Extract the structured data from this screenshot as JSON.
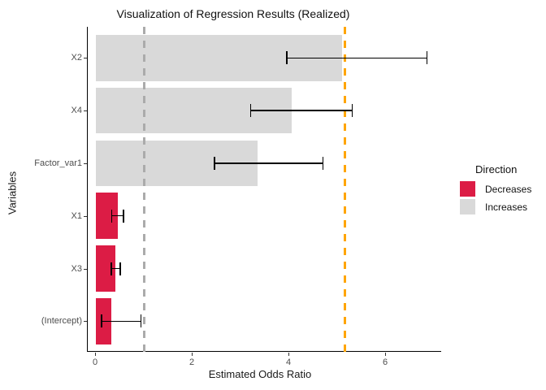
{
  "chart_data": {
    "type": "bar",
    "orientation": "horizontal",
    "title": "Visualization of Regression Results (Realized)",
    "xlabel": "Estimated Odds Ratio",
    "ylabel": "Variables",
    "xlim": [
      -0.2,
      7.2
    ],
    "x_ticks": [
      "0",
      "2",
      "4",
      "6"
    ],
    "x_tick_values": [
      0,
      2,
      4,
      6
    ],
    "grid": false,
    "categories": [
      "X2",
      "X4",
      "Factor_var1",
      "X1",
      "X3",
      "(Intercept)"
    ],
    "values": [
      5.1,
      4.05,
      3.35,
      0.45,
      0.4,
      0.32
    ],
    "ci_low": [
      3.95,
      3.2,
      2.45,
      0.33,
      0.32,
      0.12
    ],
    "ci_high": [
      6.85,
      5.3,
      4.7,
      0.57,
      0.5,
      0.93
    ],
    "direction": [
      "Increases",
      "Increases",
      "Increases",
      "Decreases",
      "Decreases",
      "Decreases"
    ],
    "colors": {
      "Decreases": "#DC1C45",
      "Increases": "#D9D9D9"
    },
    "reference_lines": [
      {
        "name": "null-effect-line",
        "value": 1.0,
        "color": "#ABABAB",
        "style": "dashed"
      },
      {
        "name": "realized-value-line",
        "value": 5.15,
        "color": "#FFA500",
        "style": "dashed"
      }
    ],
    "legend": {
      "title": "Direction",
      "position": "right",
      "entries": [
        {
          "label": "Decreases",
          "color": "#DC1C45"
        },
        {
          "label": "Increases",
          "color": "#D9D9D9"
        }
      ]
    }
  }
}
